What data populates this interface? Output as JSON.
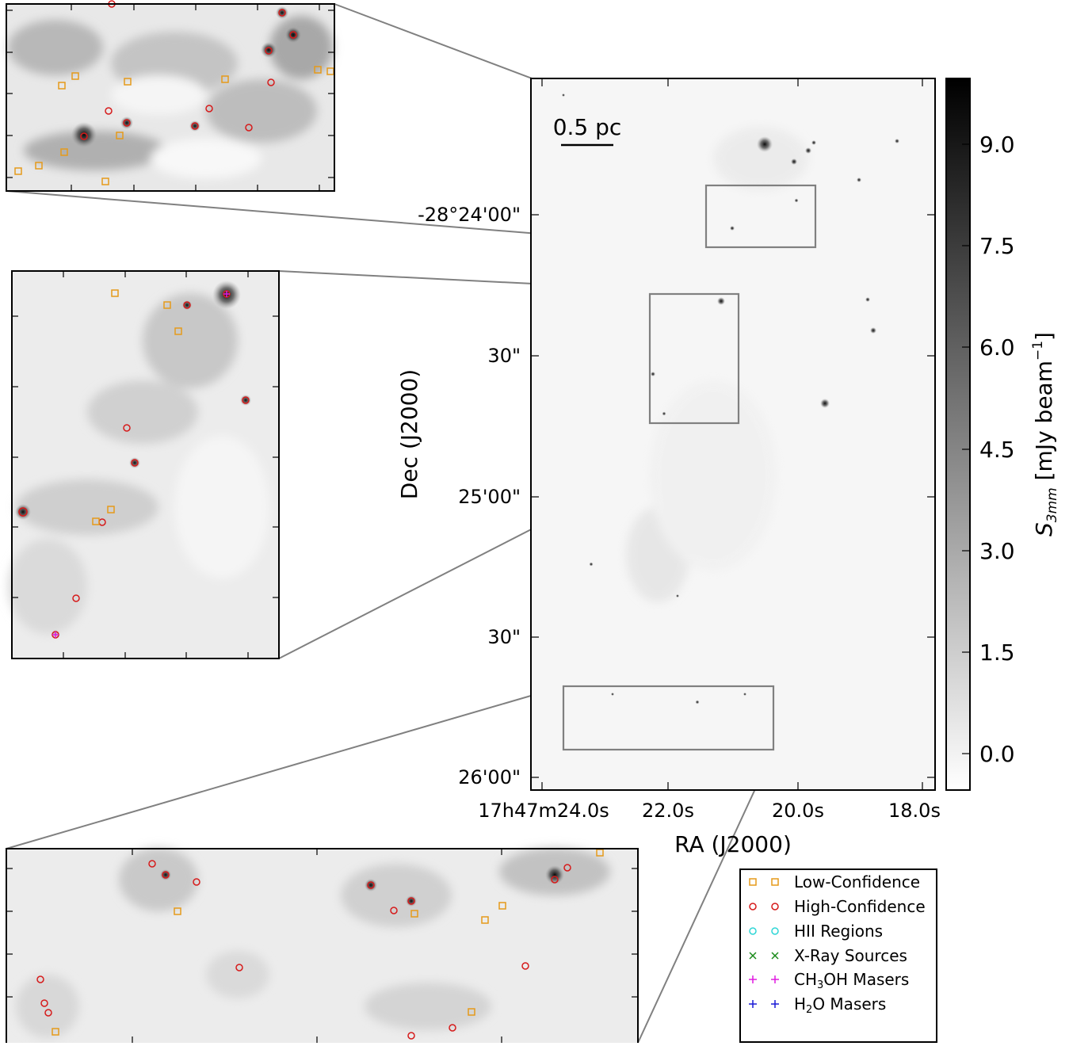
{
  "main_panel": {
    "scalebar_label": "0.5 pc",
    "ra_ticks": [
      "17h47m24.0s",
      "22.0s",
      "20.0s",
      "18.0s"
    ],
    "dec_ticks": [
      "-28°24'00\"",
      "30\"",
      "25'00\"",
      "30\"",
      "26'00\""
    ],
    "xlabel": "RA (J2000)",
    "ylabel": "Dec (J2000)"
  },
  "colorbar": {
    "ticks": [
      "9.0",
      "7.5",
      "6.0",
      "4.5",
      "3.0",
      "1.5",
      "0.0"
    ],
    "label_symbol": "S",
    "label_sub": "3mm",
    "label_unit": " [mJy beam",
    "label_exp": "−1",
    "label_close": "]",
    "colormap": "gray_r"
  },
  "legend": {
    "items": [
      {
        "label": "Low-Confidence",
        "marker": "square",
        "color": "#e59a1a"
      },
      {
        "label": "High-Confidence",
        "marker": "circle",
        "color": "#d61a1a"
      },
      {
        "label": "HII Regions",
        "marker": "circle",
        "color": "#2fd6d6"
      },
      {
        "label": "X-Ray Sources",
        "marker": "x",
        "color": "#1a8a1a"
      },
      {
        "label_pre": "CH",
        "label_sub": "3",
        "label_post": "OH Masers",
        "marker": "plus",
        "color": "#e01ae0"
      },
      {
        "label_pre": "H",
        "label_sub": "2",
        "label_post": "O Masers",
        "marker": "plus",
        "color": "#1a1ad6"
      }
    ]
  },
  "colors": {
    "connector": "#808080",
    "low_confidence": "#e59a1a",
    "high_confidence": "#d61a1a",
    "ch3oh_maser": "#e01ae0"
  }
}
